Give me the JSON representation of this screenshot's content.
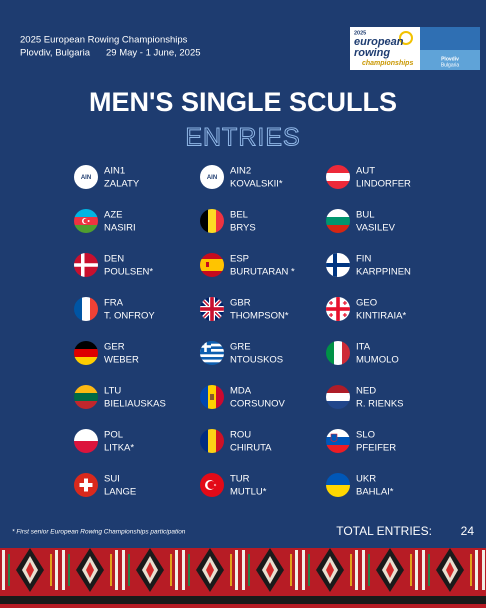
{
  "header": {
    "event": "2025 European Rowing Championships",
    "location": "Plovdiv, Bulgaria",
    "dates": "29 May - 1 June, 2025"
  },
  "logo": {
    "year": "2025",
    "line1": "european",
    "line2": "rowing",
    "line3": "championships",
    "city": "Plovdiv",
    "country": "Bulgaria"
  },
  "title": "MEN'S SINGLE SCULLS",
  "subtitle": "ENTRIES",
  "entries": [
    {
      "code": "AIN1",
      "name": "ZALATY",
      "flag_label": "AIN"
    },
    {
      "code": "AIN2",
      "name": "KOVALSKII*",
      "flag_label": "AIN"
    },
    {
      "code": "AUT",
      "name": "LINDORFER"
    },
    {
      "code": "AZE",
      "name": "NASIRI"
    },
    {
      "code": "BEL",
      "name": "BRYS"
    },
    {
      "code": "BUL",
      "name": "VASILEV"
    },
    {
      "code": "DEN",
      "name": "POULSEN*"
    },
    {
      "code": "ESP",
      "name": "BURUTARAN *"
    },
    {
      "code": "FIN",
      "name": "KARPPINEN"
    },
    {
      "code": "FRA",
      "name": "T. ONFROY"
    },
    {
      "code": "GBR",
      "name": "THOMPSON*"
    },
    {
      "code": "GEO",
      "name": "KINTIRAIA*"
    },
    {
      "code": "GER",
      "name": "WEBER"
    },
    {
      "code": "GRE",
      "name": "NTOUSKOS"
    },
    {
      "code": "ITA",
      "name": "MUMOLO"
    },
    {
      "code": "LTU",
      "name": "BIELIAUSKAS"
    },
    {
      "code": "MDA",
      "name": "CORSUNOV"
    },
    {
      "code": "NED",
      "name": "R. RIENKS"
    },
    {
      "code": "POL",
      "name": "LITKA*"
    },
    {
      "code": "ROU",
      "name": "CHIRUTA"
    },
    {
      "code": "SLO",
      "name": "PFEIFER"
    },
    {
      "code": "SUI",
      "name": "LANGE"
    },
    {
      "code": "TUR",
      "name": "MUTLU*"
    },
    {
      "code": "UKR",
      "name": "BAHLAI*"
    }
  ],
  "footnote": "* First senior European Rowing Championships participation",
  "total": {
    "label": "TOTAL ENTRIES:",
    "value": 24
  }
}
